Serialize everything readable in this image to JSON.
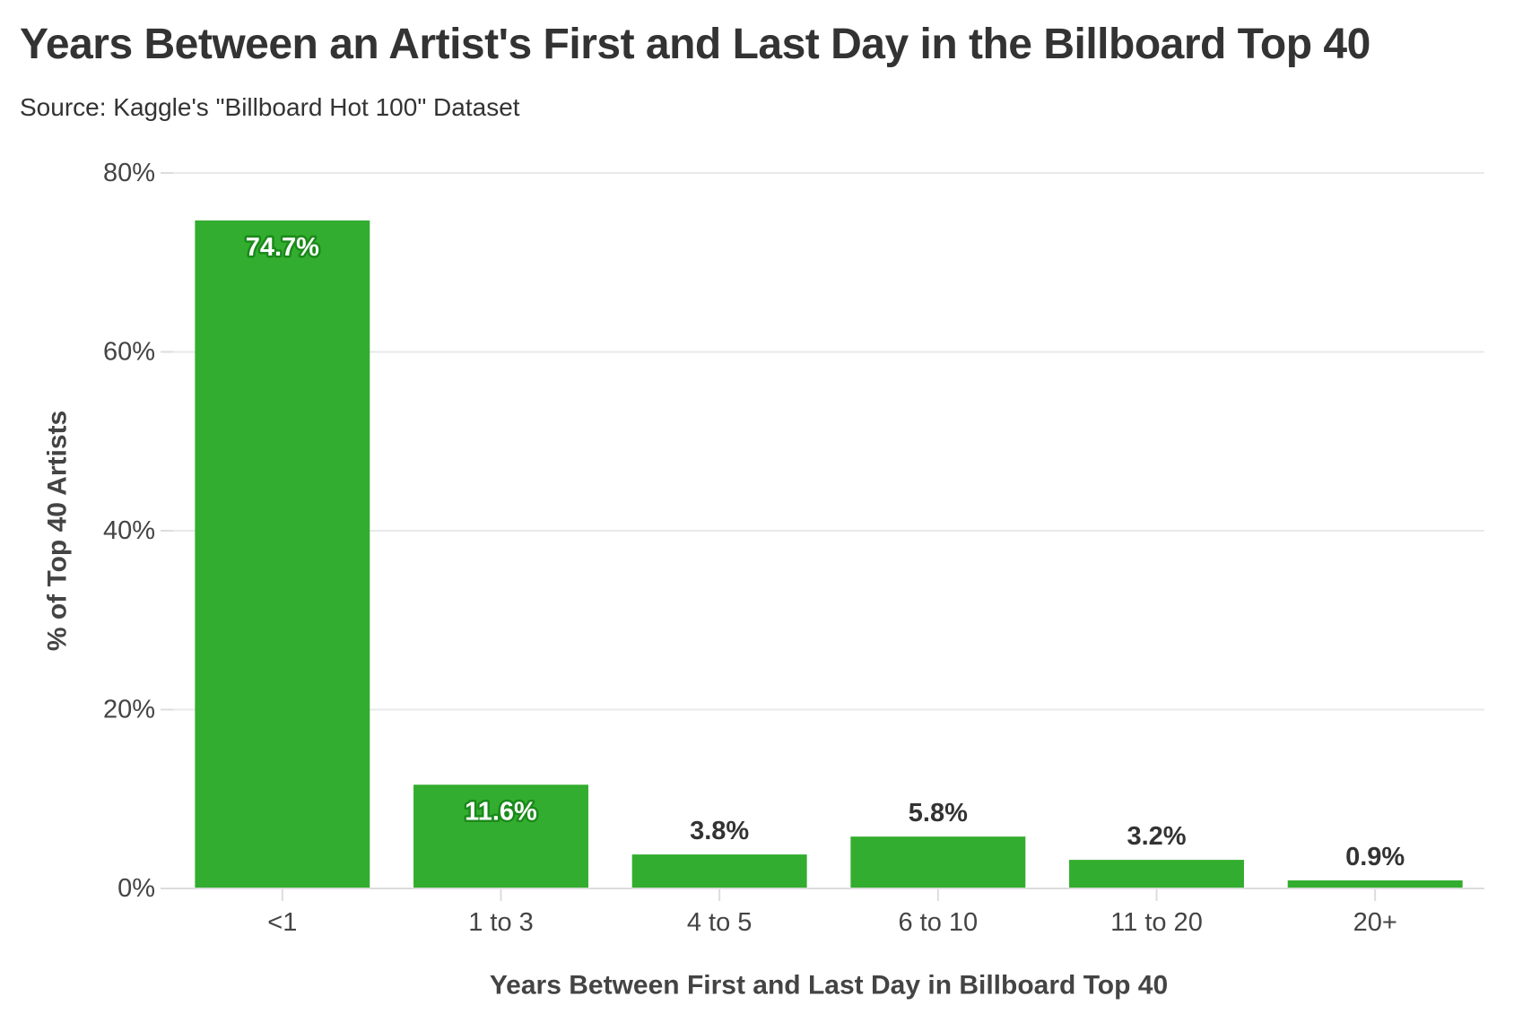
{
  "colors": {
    "bar": "#33ad2f",
    "label_inside_fill": "#ffffff",
    "label_inside_stroke": "#1a8a1a",
    "label_outside": "#333333",
    "grid": "#e9e9e9",
    "axis": "#dcdcdc"
  },
  "chart_data": {
    "type": "bar",
    "title": "Years Between an Artist's First and Last Day in the Billboard Top 40",
    "subtitle": "Source: Kaggle's \"Billboard Hot 100\" Dataset",
    "xlabel": "Years Between First and Last Day in Billboard Top 40",
    "ylabel": "% of Top 40 Artists",
    "categories": [
      "<1",
      "1 to 3",
      "4 to 5",
      "6 to 10",
      "11 to 20",
      "20+"
    ],
    "values": [
      74.7,
      11.6,
      3.8,
      5.8,
      3.2,
      0.9
    ],
    "data_labels": [
      "74.7%",
      "11.6%",
      "3.8%",
      "5.8%",
      "3.2%",
      "0.9%"
    ],
    "label_inside": [
      true,
      true,
      false,
      false,
      false,
      false
    ],
    "ylim": [
      0,
      80
    ],
    "yticks": [
      0,
      20,
      40,
      60,
      80
    ],
    "ytick_labels": [
      "0%",
      "20%",
      "40%",
      "60%",
      "80%"
    ],
    "grid": true,
    "legend": "none"
  }
}
